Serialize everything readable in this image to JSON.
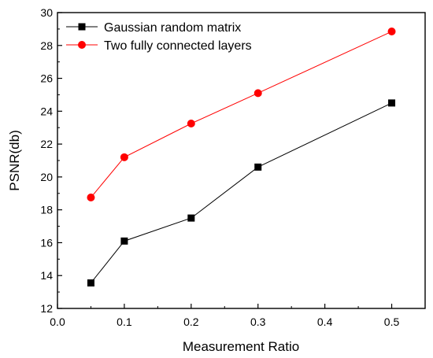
{
  "chart_data": {
    "type": "line",
    "title": "",
    "xlabel": "Measurement Ratio",
    "ylabel": "PSNR(db)",
    "xlim": [
      0.0,
      0.55
    ],
    "ylim": [
      12,
      30
    ],
    "xticks": [
      "0.0",
      "0.1",
      "0.2",
      "0.3",
      "0.4",
      "0.5"
    ],
    "yticks": [
      "12",
      "14",
      "16",
      "18",
      "20",
      "22",
      "24",
      "26",
      "28",
      "30"
    ],
    "grid": false,
    "legend_position": "top-left",
    "x": [
      0.05,
      0.1,
      0.2,
      0.3,
      0.5
    ],
    "series": [
      {
        "name": "Gaussian random matrix",
        "marker": "square",
        "color": "#000000",
        "values": [
          13.55,
          16.1,
          17.5,
          20.6,
          24.5
        ]
      },
      {
        "name": "Two fully connected layers",
        "marker": "circle",
        "color": "#ff0000",
        "values": [
          18.75,
          21.2,
          23.25,
          25.1,
          28.85
        ]
      }
    ]
  }
}
